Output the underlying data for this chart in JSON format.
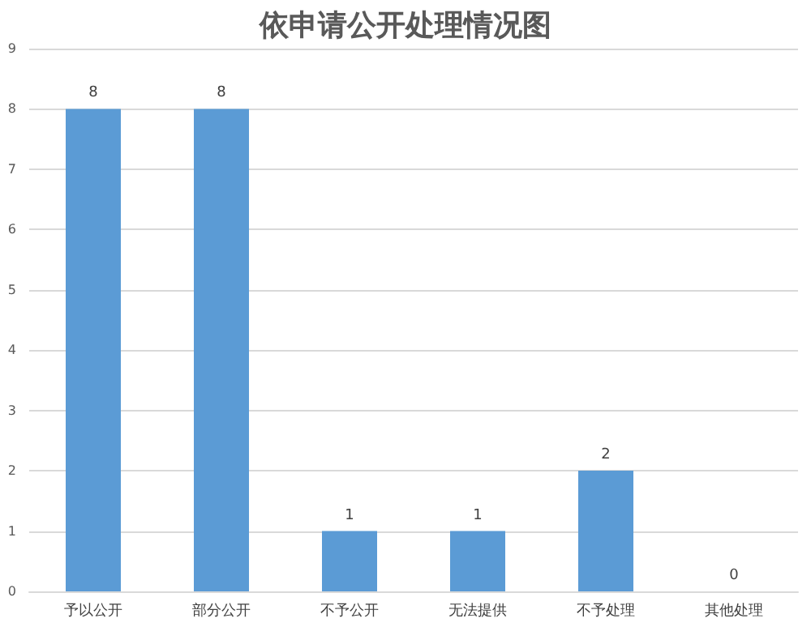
{
  "chart_data": {
    "type": "bar",
    "title": "依申请公开处理情况图",
    "categories": [
      "予以公开",
      "部分公开",
      "不予公开",
      "无法提供",
      "不予处理",
      "其他处理"
    ],
    "values": [
      8,
      8,
      1,
      1,
      2,
      0
    ],
    "color": "#5b9bd5",
    "data_labels": true,
    "ylim": [
      0,
      9
    ],
    "yticks": [
      0,
      1,
      2,
      3,
      4,
      5,
      6,
      7,
      8,
      9
    ],
    "grid": "y"
  }
}
